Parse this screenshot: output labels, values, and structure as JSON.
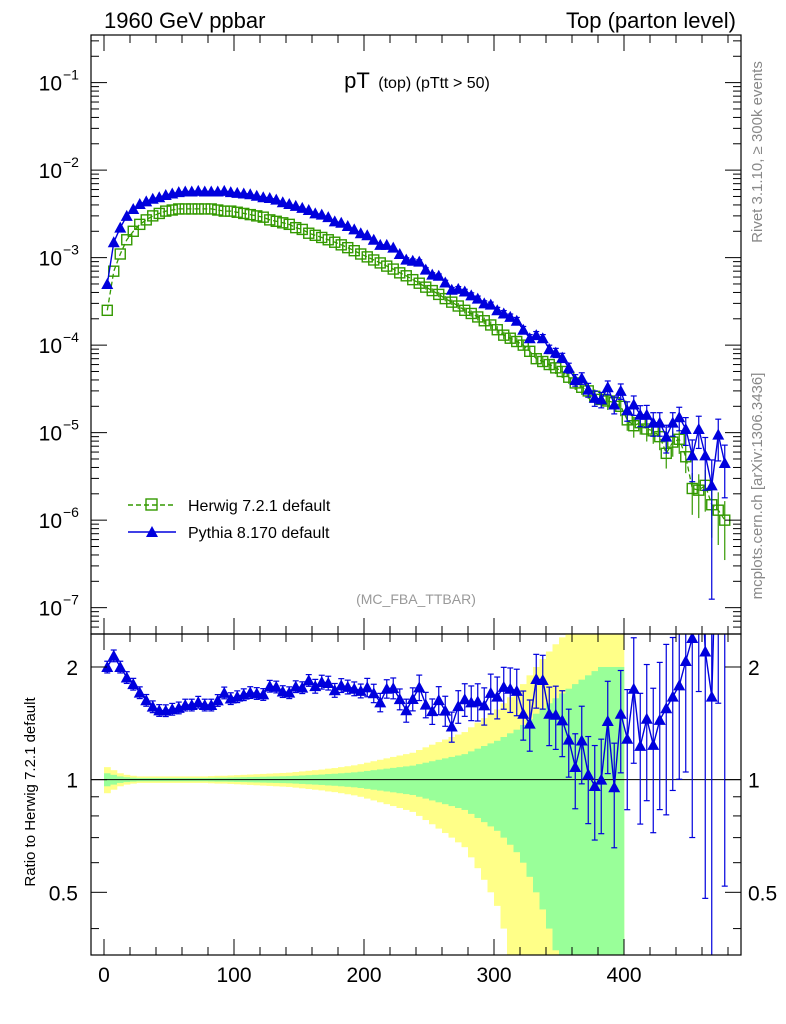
{
  "header": {
    "left": "1960 GeV ppbar",
    "right": "Top (parton level)"
  },
  "side_labels": {
    "rivet": "Rivet 3.1.10, ≥ 300k events",
    "mcplots": "mcplots.cern.ch [arXiv:1306.3436]"
  },
  "chart_data": {
    "type": "scatter",
    "title_main": "pT",
    "title_sub": "(top) (pTtt > 50)",
    "analysis_id": "(MC_FBA_TTBAR)",
    "xlim": [
      -10,
      490
    ],
    "x_ticks": [
      0,
      100,
      200,
      300,
      400
    ],
    "x_tick_labels": [
      "0",
      "100",
      "200",
      "300",
      "400"
    ],
    "main": {
      "yscale": "log",
      "ylim": [
        5e-08,
        0.35
      ],
      "y_tick_exponents": [
        -7,
        -6,
        -5,
        -4,
        -3,
        -2,
        -1
      ],
      "y_tick_labels": [
        "10",
        "10",
        "10",
        "10",
        "10",
        "10",
        "10"
      ],
      "y_tick_sups": [
        "−7",
        "−6",
        "−5",
        "−4",
        "−3",
        "−2",
        "−1"
      ]
    },
    "ratio": {
      "ylabel": "Ratio to Herwig 7.2.1 default",
      "yscale": "log",
      "ylim": [
        0.34,
        2.45
      ],
      "y_ticks": [
        0.5,
        1,
        2
      ],
      "y_tick_labels": [
        "0.5",
        "1",
        "2"
      ],
      "band_half_widths_1sigma": [
        0.04,
        0.03,
        0.02,
        0.015,
        0.012,
        0.01,
        0.01,
        0.01,
        0.01,
        0.01,
        0.01,
        0.01,
        0.01,
        0.01,
        0.01,
        0.01,
        0.011,
        0.012,
        0.012,
        0.013,
        0.014,
        0.015,
        0.016,
        0.017,
        0.018,
        0.019,
        0.02,
        0.021,
        0.022,
        0.024,
        0.026,
        0.028,
        0.03,
        0.032,
        0.035,
        0.037,
        0.04,
        0.043,
        0.046,
        0.05,
        0.055,
        0.06,
        0.065,
        0.07,
        0.075,
        0.08,
        0.085,
        0.09,
        0.1,
        0.11,
        0.12,
        0.13,
        0.14,
        0.15,
        0.16,
        0.17,
        0.19,
        0.21,
        0.23,
        0.25,
        0.27,
        0.3,
        0.33,
        0.36,
        0.4,
        0.45,
        0.5,
        0.55,
        0.6,
        0.65,
        0.7,
        0.75,
        0.8,
        0.85,
        0.9,
        0.95,
        1.0,
        1.0,
        1.0,
        1.0
      ],
      "band_half_widths_2sigma": [
        0.08,
        0.06,
        0.04,
        0.03,
        0.024,
        0.02,
        0.02,
        0.02,
        0.02,
        0.02,
        0.02,
        0.02,
        0.02,
        0.02,
        0.02,
        0.02,
        0.022,
        0.024,
        0.024,
        0.026,
        0.028,
        0.03,
        0.032,
        0.034,
        0.036,
        0.038,
        0.04,
        0.042,
        0.044,
        0.048,
        0.052,
        0.056,
        0.06,
        0.064,
        0.07,
        0.074,
        0.08,
        0.086,
        0.092,
        0.1,
        0.11,
        0.12,
        0.13,
        0.14,
        0.15,
        0.16,
        0.17,
        0.18,
        0.2,
        0.22,
        0.24,
        0.26,
        0.28,
        0.3,
        0.32,
        0.34,
        0.38,
        0.42,
        0.46,
        0.5,
        0.54,
        0.6,
        0.66,
        0.72,
        0.8,
        0.9,
        1.0,
        1.1,
        1.2,
        1.3,
        1.4,
        1.5,
        1.6,
        1.7,
        1.8,
        1.9,
        2.0,
        2.0,
        2.0,
        2.0
      ]
    },
    "x": [
      2.5,
      7.5,
      12.5,
      17.5,
      22.5,
      27.5,
      32.5,
      37.5,
      42.5,
      47.5,
      52.5,
      57.5,
      62.5,
      67.5,
      72.5,
      77.5,
      82.5,
      87.5,
      92.5,
      97.5,
      102.5,
      107.5,
      112.5,
      117.5,
      122.5,
      127.5,
      132.5,
      137.5,
      142.5,
      147.5,
      152.5,
      157.5,
      162.5,
      167.5,
      172.5,
      177.5,
      182.5,
      187.5,
      192.5,
      197.5,
      202.5,
      207.5,
      212.5,
      217.5,
      222.5,
      227.5,
      232.5,
      237.5,
      242.5,
      247.5,
      252.5,
      257.5,
      262.5,
      267.5,
      272.5,
      277.5,
      282.5,
      287.5,
      292.5,
      297.5,
      302.5,
      307.5,
      312.5,
      317.5,
      322.5,
      327.5,
      332.5,
      337.5,
      342.5,
      347.5,
      352.5,
      357.5,
      362.5,
      367.5,
      372.5,
      377.5,
      382.5,
      387.5,
      392.5,
      397.5,
      402.5,
      407.5,
      412.5,
      417.5,
      422.5,
      427.5,
      432.5,
      437.5,
      442.5,
      447.5,
      452.5,
      457.5,
      462.5,
      467.5,
      472.5,
      477.5
    ],
    "series": [
      {
        "name": "Herwig 7.2.1 default",
        "color": "#339900",
        "marker": "open-square",
        "linestyle": "dashed",
        "values": [
          0.00025,
          0.0007,
          0.0011,
          0.0016,
          0.002,
          0.0024,
          0.0027,
          0.003,
          0.0032,
          0.0034,
          0.0035,
          0.0036,
          0.0036,
          0.0036,
          0.0036,
          0.0036,
          0.0036,
          0.0035,
          0.0034,
          0.0034,
          0.0033,
          0.0032,
          0.0031,
          0.003,
          0.0029,
          0.0027,
          0.0026,
          0.0025,
          0.0024,
          0.0022,
          0.0021,
          0.0019,
          0.0018,
          0.0017,
          0.0016,
          0.0015,
          0.0014,
          0.0013,
          0.0012,
          0.0011,
          0.00102,
          0.00094,
          0.00087,
          0.0008,
          0.00074,
          0.00067,
          0.00062,
          0.00056,
          0.00051,
          0.00046,
          0.00042,
          0.00038,
          0.00034,
          0.00031,
          0.00028,
          0.00025,
          0.00023,
          0.00021,
          0.00019,
          0.00017,
          0.00015,
          0.00013,
          0.00012,
          0.00011,
          0.0001,
          8.5e-05,
          7e-05,
          6.5e-05,
          6e-05,
          5.5e-05,
          5e-05,
          4.3e-05,
          3.7e-05,
          3.3e-05,
          3e-05,
          2.6e-05,
          2.4e-05,
          2.3e-05,
          2.2e-05,
          2e-05,
          1.4e-05,
          1.2e-05,
          1.3e-05,
          1.1e-05,
          1.05e-05,
          9e-06,
          5.8e-06,
          7.8e-06,
          8.4e-06,
          5.3e-06,
          2.3e-06,
          2.2e-06,
          2.5e-06,
          1.5e-06,
          1.3e-06,
          1e-06
        ],
        "yerr_rel": [
          0.02,
          0.02,
          0.02,
          0.02,
          0.02,
          0.02,
          0.02,
          0.02,
          0.02,
          0.02,
          0.02,
          0.02,
          0.02,
          0.02,
          0.02,
          0.02,
          0.02,
          0.02,
          0.02,
          0.02,
          0.02,
          0.02,
          0.02,
          0.02,
          0.02,
          0.02,
          0.02,
          0.02,
          0.02,
          0.02,
          0.02,
          0.02,
          0.03,
          0.03,
          0.03,
          0.03,
          0.03,
          0.03,
          0.03,
          0.03,
          0.04,
          0.04,
          0.04,
          0.04,
          0.05,
          0.05,
          0.05,
          0.05,
          0.06,
          0.06,
          0.06,
          0.07,
          0.07,
          0.07,
          0.08,
          0.08,
          0.08,
          0.09,
          0.09,
          0.1,
          0.1,
          0.1,
          0.11,
          0.11,
          0.12,
          0.12,
          0.13,
          0.13,
          0.14,
          0.15,
          0.16,
          0.16,
          0.17,
          0.18,
          0.19,
          0.2,
          0.2,
          0.21,
          0.22,
          0.23,
          0.25,
          0.27,
          0.27,
          0.28,
          0.29,
          0.3,
          0.33,
          0.32,
          0.32,
          0.35,
          0.5,
          0.52,
          0.5,
          0.58,
          0.6,
          0.65
        ]
      },
      {
        "name": "Pythia 8.170 default",
        "color": "#0000dd",
        "marker": "filled-triangle",
        "linestyle": "solid",
        "values": [
          0.0005,
          0.0015,
          0.0022,
          0.003,
          0.0036,
          0.0041,
          0.0044,
          0.0047,
          0.0049,
          0.0052,
          0.0054,
          0.0056,
          0.0057,
          0.0057,
          0.0058,
          0.0057,
          0.0057,
          0.0057,
          0.0058,
          0.0056,
          0.0055,
          0.0054,
          0.0053,
          0.0051,
          0.0049,
          0.0048,
          0.0046,
          0.0043,
          0.0041,
          0.0039,
          0.0037,
          0.0035,
          0.0032,
          0.0031,
          0.0029,
          0.0026,
          0.0025,
          0.0023,
          0.0021,
          0.0019,
          0.0018,
          0.0016,
          0.0014,
          0.0014,
          0.0013,
          0.0011,
          0.00095,
          0.00092,
          0.0009,
          0.00073,
          0.00064,
          0.00062,
          0.00052,
          0.00043,
          0.00044,
          0.00041,
          0.00037,
          0.00034,
          0.0003,
          0.00029,
          0.00025,
          0.00023,
          0.00021,
          0.00019,
          0.00015,
          0.00012,
          0.00013,
          0.00012,
          9e-05,
          8.2e-05,
          7.2e-05,
          5.5e-05,
          4e-05,
          4.2e-05,
          3.1e-05,
          2.5e-05,
          2.4e-05,
          3.3e-05,
          2.1e-05,
          3e-05,
          1.8e-05,
          2.1e-05,
          1.6e-05,
          1.6e-05,
          1.3e-05,
          1.3e-05,
          9e-06,
          1.3e-05,
          1.5e-05,
          1.1e-05,
          5.5e-06,
          1.1e-05,
          5.5e-06,
          2.5e-06,
          9.5e-06,
          4.5e-06
        ],
        "yerr_rel": [
          0.03,
          0.03,
          0.03,
          0.03,
          0.03,
          0.03,
          0.03,
          0.03,
          0.03,
          0.03,
          0.03,
          0.03,
          0.03,
          0.03,
          0.03,
          0.03,
          0.03,
          0.03,
          0.03,
          0.03,
          0.03,
          0.03,
          0.03,
          0.03,
          0.03,
          0.03,
          0.03,
          0.03,
          0.03,
          0.03,
          0.03,
          0.03,
          0.03,
          0.03,
          0.03,
          0.03,
          0.03,
          0.03,
          0.03,
          0.03,
          0.04,
          0.04,
          0.04,
          0.04,
          0.04,
          0.04,
          0.05,
          0.05,
          0.05,
          0.05,
          0.05,
          0.05,
          0.06,
          0.06,
          0.06,
          0.06,
          0.07,
          0.07,
          0.07,
          0.07,
          0.08,
          0.08,
          0.08,
          0.09,
          0.09,
          0.1,
          0.1,
          0.1,
          0.11,
          0.12,
          0.12,
          0.13,
          0.15,
          0.15,
          0.18,
          0.2,
          0.2,
          0.18,
          0.22,
          0.2,
          0.25,
          0.25,
          0.27,
          0.28,
          0.3,
          0.3,
          0.35,
          0.3,
          0.3,
          0.35,
          0.5,
          0.4,
          0.6,
          0.95,
          0.5,
          0.6
        ]
      }
    ],
    "legend": [
      {
        "label": "Herwig 7.2.1 default"
      },
      {
        "label": "Pythia 8.170 default"
      }
    ],
    "ratio_colors": {
      "band_inner": "#99ff99",
      "band_outer": "#ffff88",
      "unity_line": "#000000"
    }
  }
}
